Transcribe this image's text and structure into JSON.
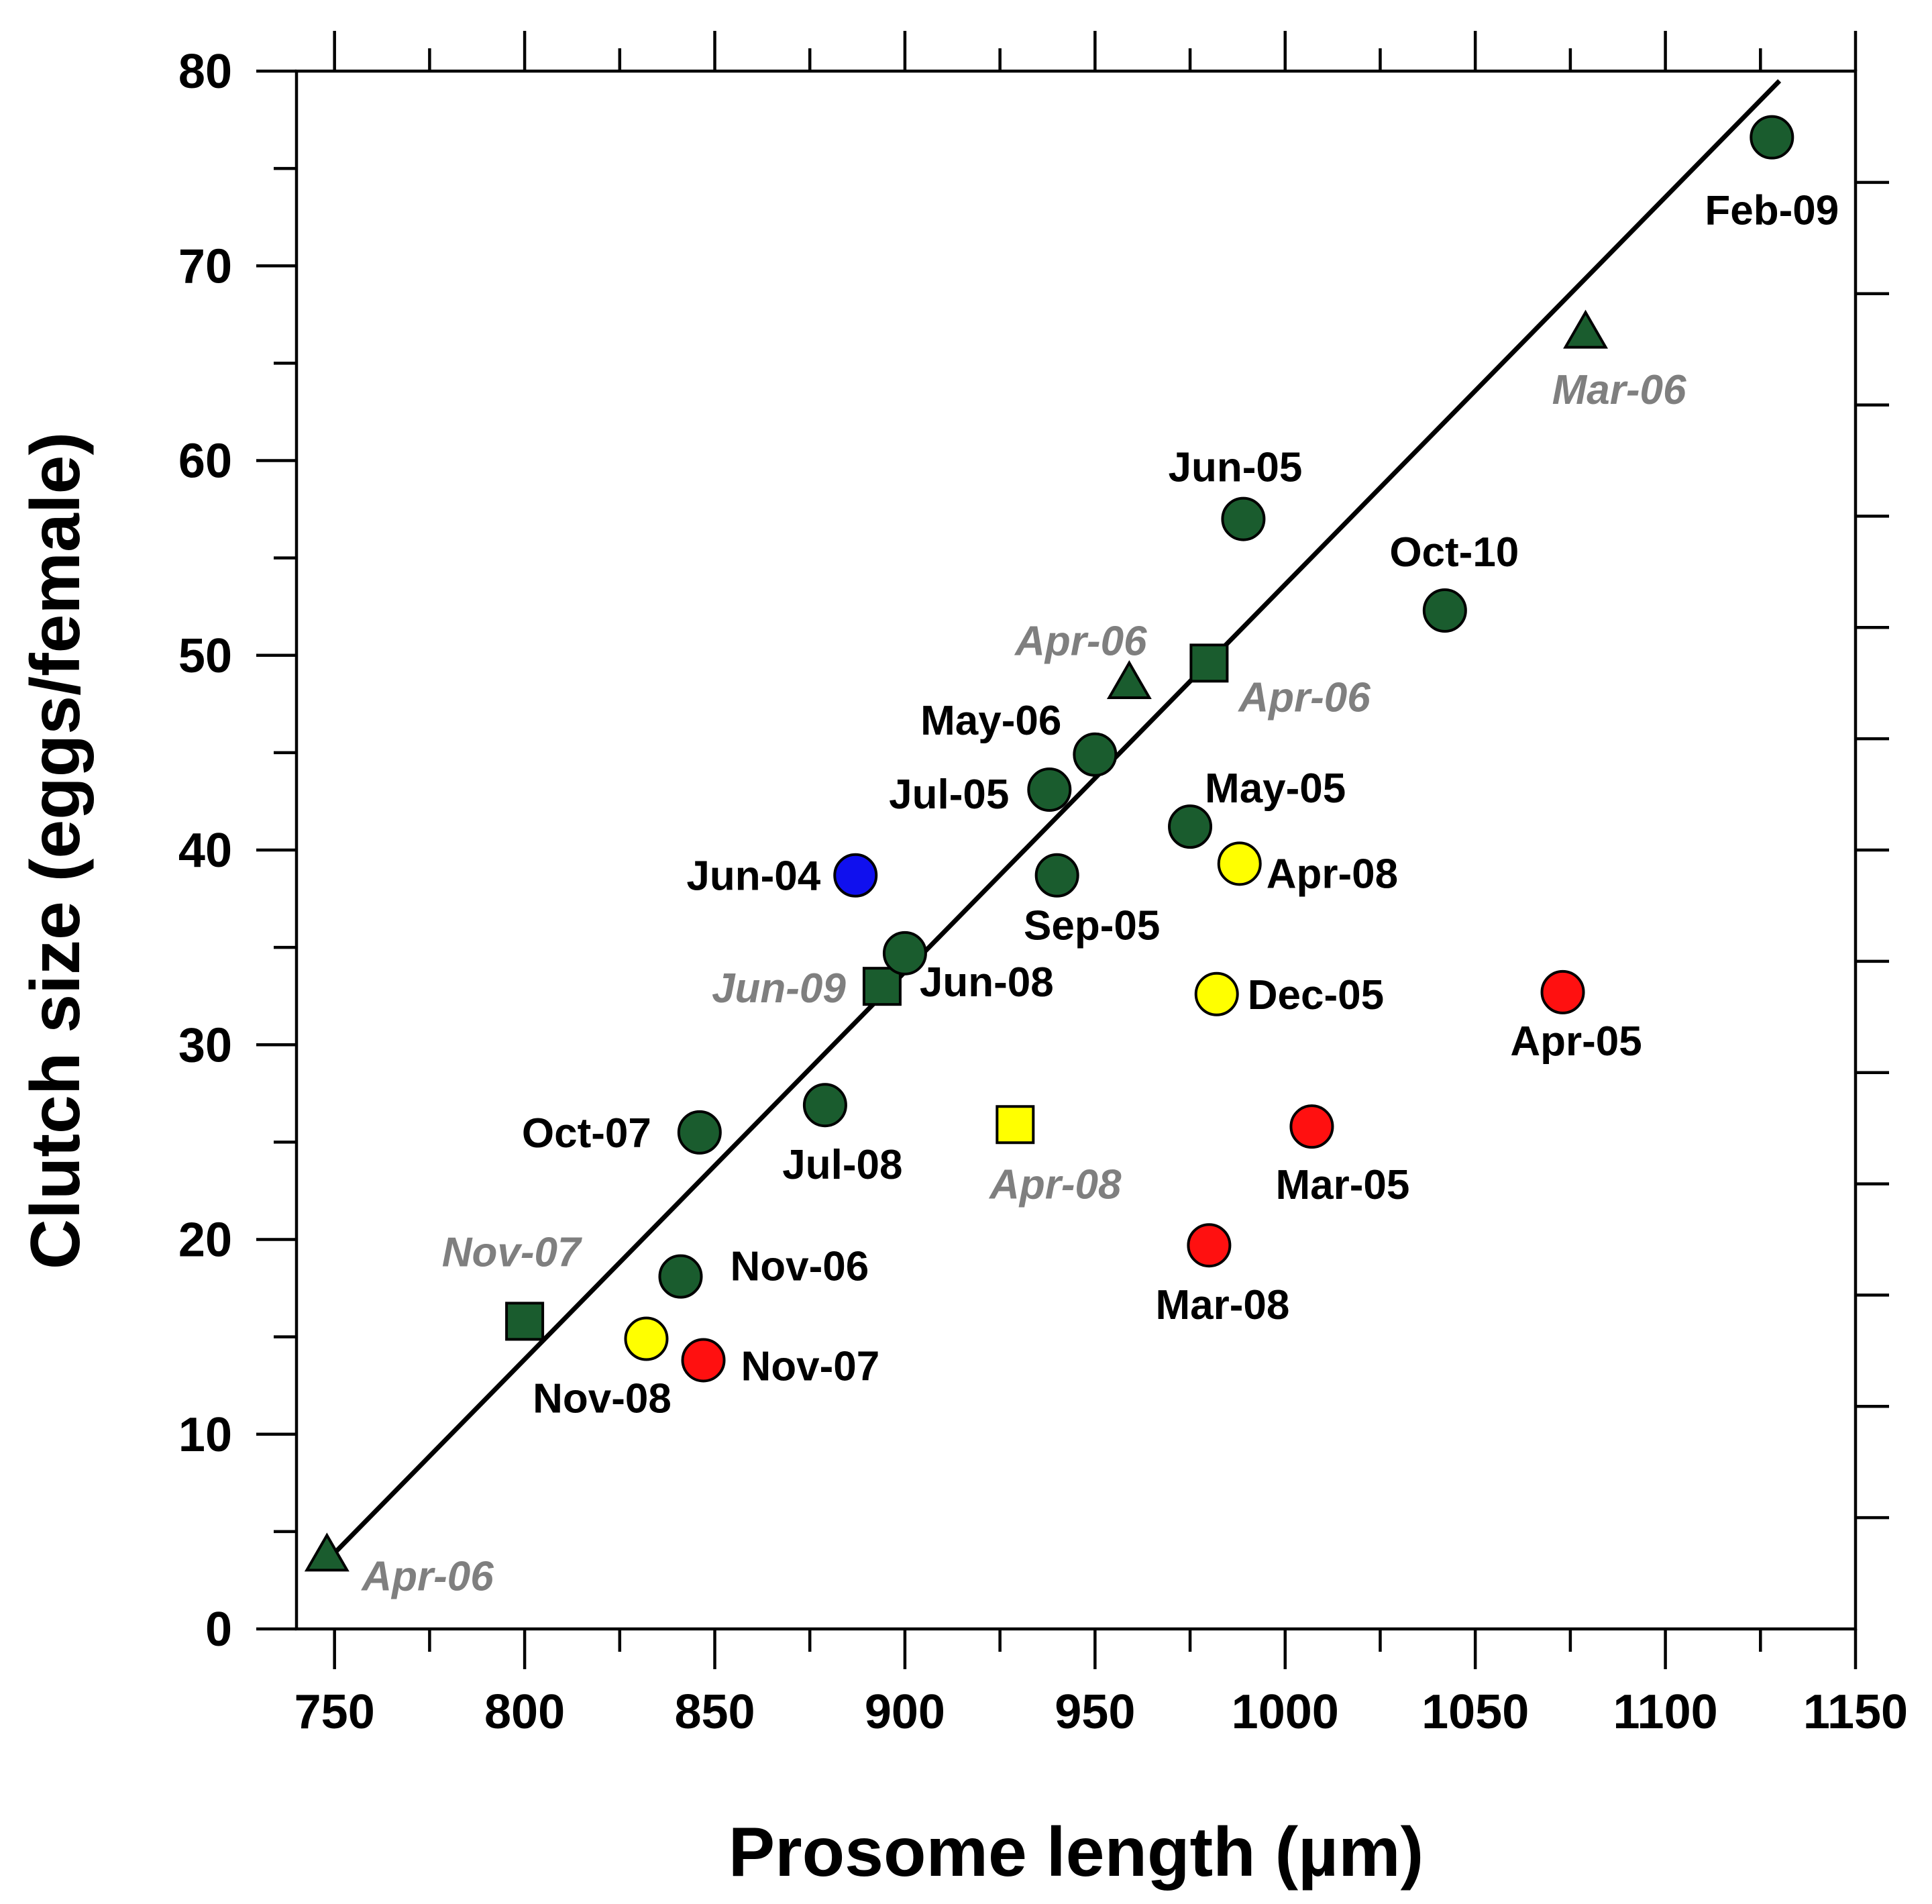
{
  "chart_data": {
    "type": "scatter",
    "xlabel": "Prosome length (µm)",
    "ylabel": "Clutch size (eggs/female)",
    "xlim": [
      740,
      1150
    ],
    "ylim": [
      0,
      80
    ],
    "x_ticks": [
      750,
      800,
      850,
      900,
      950,
      1000,
      1050,
      1100,
      1150
    ],
    "y_ticks": [
      0,
      10,
      20,
      30,
      40,
      50,
      60,
      70,
      80
    ],
    "colors": {
      "green": "#1a5c2e",
      "blue": "#1010ee",
      "yellow": "#ffff00",
      "red": "#ff1010",
      "gray_label": "#7f7f7f"
    },
    "fit_line": {
      "x": [
        748,
        1130
      ],
      "y": [
        3.5,
        79.5
      ]
    },
    "points": [
      {
        "x": 748,
        "y": 3.7,
        "shape": "triangle",
        "color": "green",
        "label": "Apr-06",
        "italic": true
      },
      {
        "x": 800,
        "y": 15.8,
        "shape": "square",
        "color": "green",
        "label": "Nov-07",
        "italic": true
      },
      {
        "x": 832,
        "y": 14.9,
        "shape": "circle",
        "color": "yellow",
        "label": "Nov-08",
        "italic": false
      },
      {
        "x": 841,
        "y": 18.1,
        "shape": "circle",
        "color": "green",
        "label": "Nov-06",
        "italic": false
      },
      {
        "x": 846,
        "y": 25.5,
        "shape": "circle",
        "color": "green",
        "label": "Oct-07",
        "italic": false
      },
      {
        "x": 847,
        "y": 13.8,
        "shape": "circle",
        "color": "red",
        "label": "Nov-07",
        "italic": false
      },
      {
        "x": 879,
        "y": 26.9,
        "shape": "circle",
        "color": "green",
        "label": "Jul-08",
        "italic": false
      },
      {
        "x": 887,
        "y": 38.7,
        "shape": "circle",
        "color": "blue",
        "label": "Jun-04",
        "italic": false
      },
      {
        "x": 894,
        "y": 33.0,
        "shape": "square",
        "color": "green",
        "label": "Jun-09",
        "italic": true
      },
      {
        "x": 900,
        "y": 34.7,
        "shape": "circle",
        "color": "green",
        "label": "Jun-08",
        "italic": false
      },
      {
        "x": 929,
        "y": 25.9,
        "shape": "square",
        "color": "yellow",
        "label": "Apr-08",
        "italic": true
      },
      {
        "x": 938,
        "y": 43.1,
        "shape": "circle",
        "color": "green",
        "label": "Jul-05",
        "italic": false
      },
      {
        "x": 940,
        "y": 38.7,
        "shape": "circle",
        "color": "green",
        "label": "Sep-05",
        "italic": false
      },
      {
        "x": 950,
        "y": 44.9,
        "shape": "circle",
        "color": "green",
        "label": "May-06",
        "italic": false
      },
      {
        "x": 959,
        "y": 48.5,
        "shape": "triangle",
        "color": "green",
        "label": "Apr-06",
        "italic": true
      },
      {
        "x": 975,
        "y": 41.2,
        "shape": "circle",
        "color": "green",
        "label": "May-05",
        "italic": false
      },
      {
        "x": 980,
        "y": 49.6,
        "shape": "square",
        "color": "green",
        "label": "Apr-06",
        "italic": true
      },
      {
        "x": 980,
        "y": 19.7,
        "shape": "circle",
        "color": "red",
        "label": "Mar-08",
        "italic": false
      },
      {
        "x": 982,
        "y": 32.6,
        "shape": "circle",
        "color": "yellow",
        "label": "Dec-05",
        "italic": false
      },
      {
        "x": 988,
        "y": 39.3,
        "shape": "circle",
        "color": "yellow",
        "label": "Apr-08",
        "italic": false
      },
      {
        "x": 989,
        "y": 57.0,
        "shape": "circle",
        "color": "green",
        "label": "Jun-05",
        "italic": false
      },
      {
        "x": 1007,
        "y": 25.8,
        "shape": "circle",
        "color": "red",
        "label": "Mar-05",
        "italic": false
      },
      {
        "x": 1042,
        "y": 52.3,
        "shape": "circle",
        "color": "green",
        "label": "Oct-10",
        "italic": false
      },
      {
        "x": 1073,
        "y": 32.7,
        "shape": "circle",
        "color": "red",
        "label": "Apr-05",
        "italic": false
      },
      {
        "x": 1079,
        "y": 66.5,
        "shape": "triangle",
        "color": "green",
        "label": "Mar-06",
        "italic": true
      },
      {
        "x": 1128,
        "y": 76.6,
        "shape": "circle",
        "color": "green",
        "label": "Feb-09",
        "italic": false
      }
    ]
  }
}
